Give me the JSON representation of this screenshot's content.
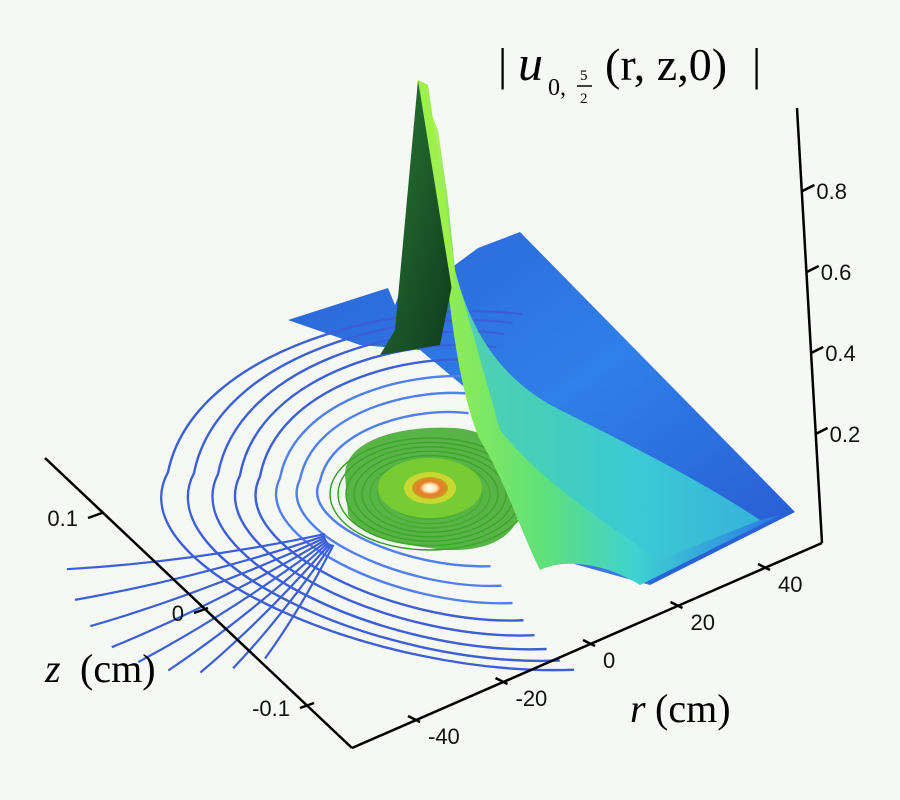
{
  "chart_data": {
    "type": "surface-3d-with-contours",
    "title": {
      "bar_left": "|",
      "symbol": "u",
      "subscript_index": "0,",
      "frac_num": "5",
      "frac_den": "2",
      "args": "(r, z,0)",
      "bar_right": "|"
    },
    "xlabel": {
      "symbol": "r",
      "unit": "(cm)"
    },
    "ylabel": {
      "symbol": "z",
      "unit": "(cm)"
    },
    "r_ticks": [
      "-40",
      "-20",
      "0",
      "20",
      "40"
    ],
    "r_tick_values": [
      -40,
      -20,
      0,
      20,
      40
    ],
    "z_ticks": [
      "-0.1",
      "0",
      "0.1"
    ],
    "z_tick_values": [
      -0.1,
      0,
      0.1
    ],
    "amp_ticks": [
      "0.2",
      "0.4",
      "0.6",
      "0.8"
    ],
    "amp_tick_values": [
      0.2,
      0.4,
      0.6,
      0.8
    ],
    "xlim": [
      -50,
      50
    ],
    "ylim": [
      -0.15,
      0.15
    ],
    "zlim": [
      0,
      1
    ],
    "peak": {
      "r": 0,
      "z": 0,
      "value": 1.0
    },
    "colors": {
      "surface_base": "#2a6fe0",
      "surface_mid": "#3fd0c8",
      "surface_high": "#a0f040",
      "peak_shadow": "#1e5a2a",
      "contour_outer": "#3c5fd8",
      "contour_inner": "#3aa020",
      "contour_center": "#e8782a"
    }
  }
}
